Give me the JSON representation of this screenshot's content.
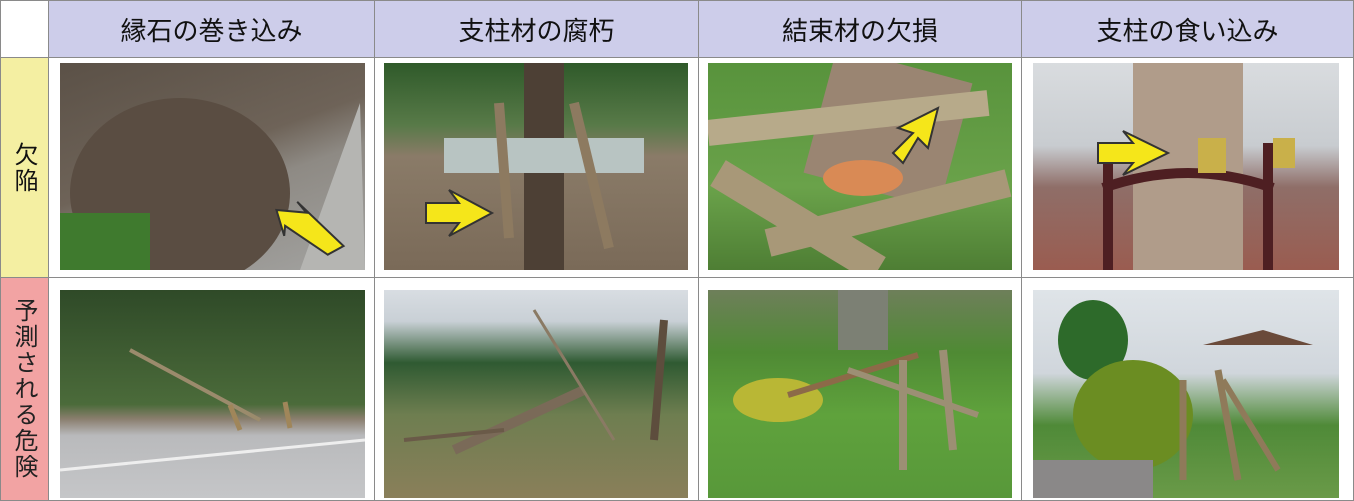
{
  "header": {
    "columns": [
      "縁石の巻き込み",
      "支柱材の腐朽",
      "結束材の欠損",
      "支柱の食い込み"
    ]
  },
  "rows": [
    {
      "label": "欠陥"
    },
    {
      "label": "予測される危険"
    }
  ]
}
